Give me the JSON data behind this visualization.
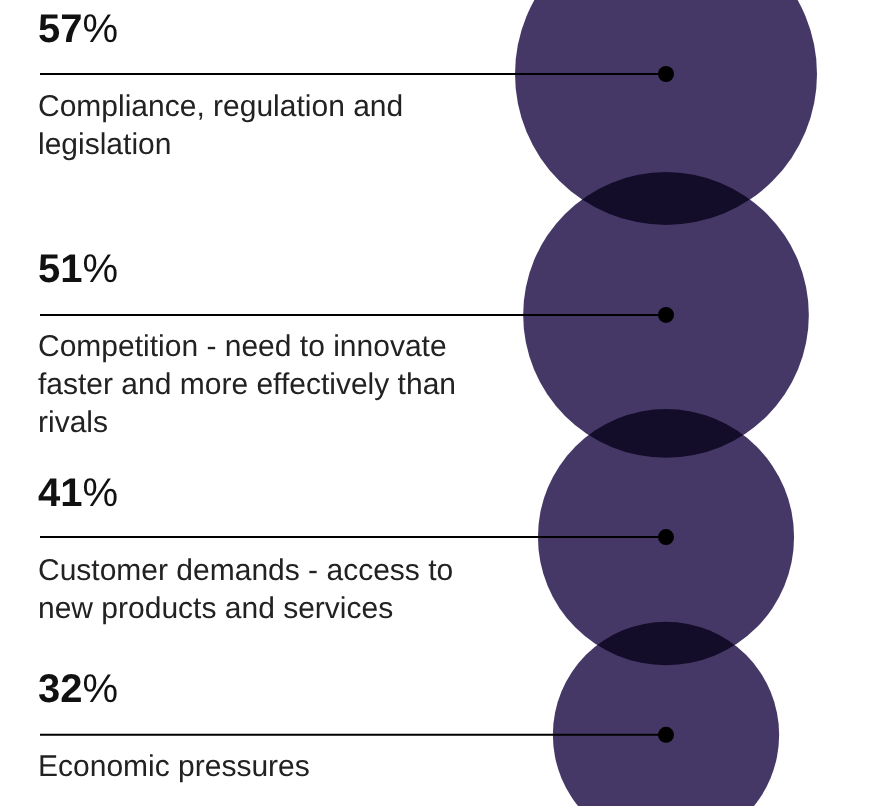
{
  "chart_data": {
    "type": "other",
    "categories": [
      "Compliance, regulation and legislation",
      "Competition - need to innovate faster and more effectively than rivals",
      "Customer demands - access to new products and services",
      "Economic pressures"
    ],
    "values": [
      57,
      51,
      41,
      32
    ],
    "value_labels": [
      "57%",
      "51%",
      "41%",
      "32%"
    ],
    "color": "#3b2d5f"
  }
}
